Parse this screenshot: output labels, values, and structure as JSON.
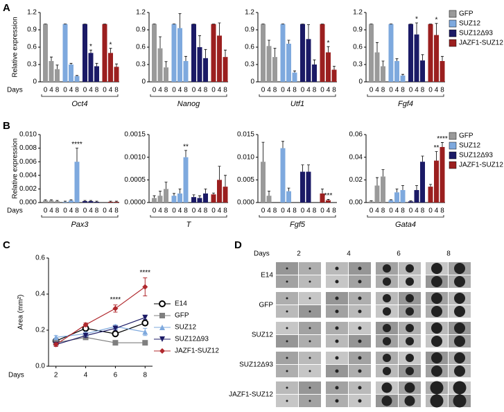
{
  "panel_labels": [
    "A",
    "B",
    "C",
    "D"
  ],
  "chart_data": [
    {
      "type": "bar",
      "title": "Oct4",
      "y_label": "Relative expression",
      "x_label": "Days",
      "categories": [
        "0",
        "4",
        "8"
      ],
      "ylim": [
        0,
        1.2
      ],
      "yticks": [
        0,
        0.3,
        0.6,
        0.9,
        1.2
      ],
      "series": [
        {
          "name": "GFP",
          "color": "#9a9a9a",
          "values": [
            1,
            0.36,
            0.22
          ],
          "errors": [
            0,
            0.07,
            0.07
          ],
          "significance": [
            null,
            null,
            null
          ]
        },
        {
          "name": "SUZ12",
          "color": "#7ea9de",
          "values": [
            1,
            0.3,
            0.1
          ],
          "errors": [
            0,
            0.02,
            0.01
          ],
          "significance": [
            null,
            null,
            null
          ]
        },
        {
          "name": "SUZ12Δ93",
          "color": "#1b1a66",
          "values": [
            1,
            0.5,
            0.27
          ],
          "errors": [
            0,
            0.05,
            0.05
          ],
          "significance": [
            null,
            "*",
            null
          ]
        },
        {
          "name": "JAZF1-SUZ12",
          "color": "#9b1f1f",
          "values": [
            1,
            0.5,
            0.26
          ],
          "errors": [
            0,
            0.08,
            0.05
          ],
          "significance": [
            null,
            "*",
            null
          ]
        }
      ]
    },
    {
      "type": "bar",
      "title": "Nanog",
      "categories": [
        "0",
        "4",
        "8"
      ],
      "ylim": [
        0,
        1.2
      ],
      "yticks": [
        0,
        0.3,
        0.6,
        0.9,
        1.2
      ],
      "series": [
        {
          "name": "GFP",
          "color": "#9a9a9a",
          "values": [
            1,
            0.58,
            0.25
          ],
          "errors": [
            0,
            0.2,
            0.1
          ],
          "significance": [
            null,
            null,
            null
          ]
        },
        {
          "name": "SUZ12",
          "color": "#7ea9de",
          "values": [
            1,
            0.93,
            0.36
          ],
          "errors": [
            0,
            0.25,
            0.08
          ],
          "significance": [
            null,
            null,
            null
          ]
        },
        {
          "name": "SUZ12Δ93",
          "color": "#1b1a66",
          "values": [
            1,
            0.6,
            0.41
          ],
          "errors": [
            0,
            0.2,
            0.15
          ],
          "significance": [
            null,
            null,
            null
          ]
        },
        {
          "name": "JAZF1-SUZ12",
          "color": "#9b1f1f",
          "values": [
            1,
            0.8,
            0.43
          ],
          "errors": [
            0,
            0.22,
            0.12
          ],
          "significance": [
            null,
            null,
            null
          ]
        }
      ]
    },
    {
      "type": "bar",
      "title": "Utf1",
      "categories": [
        "0",
        "4",
        "8"
      ],
      "ylim": [
        0,
        1.2
      ],
      "yticks": [
        0,
        0.3,
        0.6,
        0.9,
        1.2
      ],
      "series": [
        {
          "name": "GFP",
          "color": "#9a9a9a",
          "values": [
            1,
            0.62,
            0.43
          ],
          "errors": [
            0,
            0.1,
            0.15
          ],
          "significance": [
            null,
            null,
            null
          ]
        },
        {
          "name": "SUZ12",
          "color": "#7ea9de",
          "values": [
            1,
            0.66,
            0.16
          ],
          "errors": [
            0,
            0.06,
            0.03
          ],
          "significance": [
            null,
            null,
            null
          ]
        },
        {
          "name": "SUZ12Δ93",
          "color": "#1b1a66",
          "values": [
            1,
            0.74,
            0.3
          ],
          "errors": [
            0,
            0.25,
            0.08
          ],
          "significance": [
            null,
            null,
            null
          ]
        },
        {
          "name": "JAZF1-SUZ12",
          "color": "#9b1f1f",
          "values": [
            1,
            0.51,
            0.21
          ],
          "errors": [
            0,
            0.1,
            0.06
          ],
          "significance": [
            null,
            "*",
            null
          ]
        }
      ]
    },
    {
      "type": "bar",
      "title": "Fgf4",
      "categories": [
        "0",
        "4",
        "8"
      ],
      "ylim": [
        0,
        1.2
      ],
      "yticks": [
        0,
        0.3,
        0.6,
        0.9,
        1.2
      ],
      "legend": "right",
      "series": [
        {
          "name": "GFP",
          "color": "#9a9a9a",
          "values": [
            1,
            0.51,
            0.27
          ],
          "errors": [
            0,
            0.17,
            0.09
          ],
          "significance": [
            null,
            null,
            null
          ]
        },
        {
          "name": "SUZ12",
          "color": "#7ea9de",
          "values": [
            1,
            0.36,
            0.11
          ],
          "errors": [
            0,
            0.04,
            0.02
          ],
          "significance": [
            null,
            null,
            null
          ]
        },
        {
          "name": "SUZ12Δ93",
          "color": "#1b1a66",
          "values": [
            1,
            0.82,
            0.37
          ],
          "errors": [
            0,
            0.2,
            0.1
          ],
          "significance": [
            null,
            "*",
            null
          ]
        },
        {
          "name": "JAZF1-SUZ12",
          "color": "#9b1f1f",
          "values": [
            1,
            0.81,
            0.36
          ],
          "errors": [
            0,
            0.2,
            0.08
          ],
          "significance": [
            null,
            "*",
            null
          ]
        }
      ]
    },
    {
      "type": "bar",
      "title": "Pax3",
      "y_label": "Relative expression",
      "x_label": "Days",
      "categories": [
        "0",
        "4",
        "8"
      ],
      "ylim": [
        0,
        0.01
      ],
      "yticks": [
        {
          "value": 0,
          "label": "0.000"
        },
        {
          "value": 0.002,
          "label": "0.002"
        },
        {
          "value": 0.004,
          "label": "0.004"
        },
        {
          "value": 0.006,
          "label": "0.006"
        },
        {
          "value": 0.008,
          "label": "0.008"
        },
        {
          "value": 0.01,
          "label": "0.010"
        }
      ],
      "series": [
        {
          "name": "GFP",
          "color": "#9a9a9a",
          "values": [
            0.0003,
            0.0003,
            0.0002
          ],
          "errors": [
            0.0001,
            0.0001,
            0.0001
          ],
          "significance": [
            null,
            null,
            null
          ]
        },
        {
          "name": "SUZ12",
          "color": "#7ea9de",
          "values": [
            0.0001,
            0.0003,
            0.006
          ],
          "errors": [
            0.0001,
            0.0001,
            0.002
          ],
          "significance": [
            null,
            null,
            "****"
          ]
        },
        {
          "name": "SUZ12Δ93",
          "color": "#1b1a66",
          "values": [
            0.0002,
            0.0002,
            0.0001
          ],
          "errors": [
            0.0001,
            0.0001,
            0.0001
          ],
          "significance": [
            null,
            null,
            null
          ]
        },
        {
          "name": "JAZF1-SUZ12",
          "color": "#9b1f1f",
          "values": [
            0,
            0.0001,
            0.0001
          ],
          "errors": [
            0,
            0.0001,
            0.0001
          ],
          "significance": [
            null,
            null,
            null
          ]
        }
      ]
    },
    {
      "type": "bar",
      "title": "T",
      "categories": [
        "0",
        "4",
        "8"
      ],
      "ylim": [
        0,
        0.0015
      ],
      "yticks": [
        {
          "value": 0,
          "label": "0.0000"
        },
        {
          "value": 0.0005,
          "label": "0.0005"
        },
        {
          "value": 0.001,
          "label": "0.0010"
        },
        {
          "value": 0.0015,
          "label": "0.0015"
        }
      ],
      "series": [
        {
          "name": "GFP",
          "color": "#9a9a9a",
          "values": [
            0.0001,
            0.00015,
            0.0003
          ],
          "errors": [
            5e-05,
            0.0001,
            0.00015
          ],
          "significance": [
            null,
            null,
            null
          ]
        },
        {
          "name": "SUZ12",
          "color": "#7ea9de",
          "values": [
            0.00015,
            0.0002,
            0.001
          ],
          "errors": [
            5e-05,
            0.0001,
            0.00015
          ],
          "significance": [
            null,
            null,
            "**"
          ]
        },
        {
          "name": "SUZ12Δ93",
          "color": "#1b1a66",
          "values": [
            0.00012,
            0.0001,
            0.0002
          ],
          "errors": [
            5e-05,
            5e-05,
            0.0001
          ],
          "significance": [
            null,
            null,
            null
          ]
        },
        {
          "name": "JAZF1-SUZ12",
          "color": "#9b1f1f",
          "values": [
            0.00018,
            0.0005,
            0.00035
          ],
          "errors": [
            3e-05,
            0.0003,
            0.00025
          ],
          "significance": [
            null,
            null,
            null
          ]
        }
      ]
    },
    {
      "type": "bar",
      "title": "Fgf5",
      "categories": [
        "0",
        "4",
        "8"
      ],
      "ylim": [
        0,
        0.015
      ],
      "yticks": [
        {
          "value": 0,
          "label": "0.000"
        },
        {
          "value": 0.005,
          "label": "0.005"
        },
        {
          "value": 0.01,
          "label": "0.010"
        },
        {
          "value": 0.015,
          "label": "0.015"
        }
      ],
      "series": [
        {
          "name": "GFP",
          "color": "#9a9a9a",
          "values": [
            0.009,
            0.0015,
            0
          ],
          "errors": [
            0.0043,
            0.001,
            0
          ],
          "significance": [
            null,
            null,
            null
          ]
        },
        {
          "name": "SUZ12",
          "color": "#7ea9de",
          "values": [
            0.012,
            0.0025,
            0
          ],
          "errors": [
            0.0015,
            0.0007,
            0
          ],
          "significance": [
            null,
            null,
            null
          ]
        },
        {
          "name": "SUZ12Δ93",
          "color": "#1b1a66",
          "values": [
            0.0068,
            0.0068,
            0
          ],
          "errors": [
            0.0015,
            0.0015,
            0
          ],
          "significance": [
            null,
            null,
            null
          ]
        },
        {
          "name": "JAZF1-SUZ12",
          "color": "#9b1f1f",
          "values": [
            0.002,
            0.0005,
            0
          ],
          "errors": [
            0.001,
            0.0002,
            0
          ],
          "significance": [
            null,
            "***",
            null
          ]
        }
      ]
    },
    {
      "type": "bar",
      "title": "Gata4",
      "categories": [
        "0",
        "4",
        "8"
      ],
      "ylim": [
        0,
        0.06
      ],
      "legend": "right",
      "yticks": [
        {
          "value": 0,
          "label": "0.00"
        },
        {
          "value": 0.02,
          "label": "0.02"
        },
        {
          "value": 0.04,
          "label": "0.04"
        },
        {
          "value": 0.06,
          "label": "0.06"
        }
      ],
      "series": [
        {
          "name": "GFP",
          "color": "#9a9a9a",
          "values": [
            0.001,
            0.015,
            0.023
          ],
          "errors": [
            0.0005,
            0.007,
            0.006
          ],
          "significance": [
            null,
            null,
            null
          ]
        },
        {
          "name": "SUZ12",
          "color": "#7ea9de",
          "values": [
            0.002,
            0.009,
            0.011
          ],
          "errors": [
            0.0005,
            0.003,
            0.004
          ],
          "significance": [
            null,
            null,
            null
          ]
        },
        {
          "name": "SUZ12Δ93",
          "color": "#1b1a66",
          "values": [
            0.001,
            0.011,
            0.036
          ],
          "errors": [
            0.0005,
            0.004,
            0.005
          ],
          "significance": [
            null,
            null,
            null
          ]
        },
        {
          "name": "JAZF1-SUZ12",
          "color": "#9b1f1f",
          "values": [
            0.014,
            0.037,
            0.049
          ],
          "errors": [
            0.002,
            0.008,
            0.004
          ],
          "significance": [
            null,
            "**",
            "****"
          ]
        }
      ]
    },
    {
      "type": "line",
      "y_label": "Area (mm²)",
      "x_label": "Days",
      "x": [
        2,
        4,
        6,
        8
      ],
      "xlim": [
        1.5,
        8.5
      ],
      "xticks": [
        2,
        4,
        6,
        8
      ],
      "ylim": [
        0,
        0.6
      ],
      "yticks": [
        {
          "value": 0,
          "label": "0.0"
        },
        0.2,
        0.4,
        0.6
      ],
      "legend": "right",
      "series": [
        {
          "name": "E14",
          "color": "#000000",
          "marker": "circle-open",
          "values": [
            0.14,
            0.21,
            0.18,
            0.24
          ],
          "errors": [
            0.01,
            0.01,
            0.01,
            0.01
          ],
          "significance": [
            null,
            null,
            null,
            null
          ]
        },
        {
          "name": "GFP",
          "color": "#7f7f7f",
          "marker": "square",
          "values": [
            0.13,
            0.16,
            0.13,
            0.13
          ],
          "errors": [
            0.01,
            0.01,
            0.01,
            0.01
          ],
          "significance": [
            null,
            null,
            null,
            null
          ]
        },
        {
          "name": "SUZ12",
          "color": "#7ea9de",
          "marker": "triangle-up",
          "values": [
            0.16,
            0.18,
            0.22,
            0.19
          ],
          "errors": [
            0.01,
            0.01,
            0.01,
            0.02
          ],
          "significance": [
            null,
            null,
            null,
            null
          ]
        },
        {
          "name": "SUZ12Δ93",
          "color": "#1b1a66",
          "marker": "triangle-down",
          "values": [
            0.12,
            0.17,
            0.21,
            0.27
          ],
          "errors": [
            0.01,
            0.01,
            0.01,
            0.01
          ],
          "significance": [
            null,
            null,
            null,
            null
          ]
        },
        {
          "name": "JAZF1-SUZ12",
          "color": "#b0282d",
          "marker": "diamond",
          "values": [
            0.12,
            0.23,
            0.32,
            0.44
          ],
          "errors": [
            0.01,
            0.01,
            0.02,
            0.05
          ],
          "significance": [
            null,
            null,
            "****",
            "****"
          ]
        }
      ]
    }
  ],
  "image_grid": {
    "days_label": "Days",
    "columns": [
      "2",
      "4",
      "6",
      "8"
    ],
    "rows": [
      "E14",
      "GFP",
      "SUZ12",
      "SUZ12Δ93",
      "JAZF1-SUZ12"
    ]
  }
}
